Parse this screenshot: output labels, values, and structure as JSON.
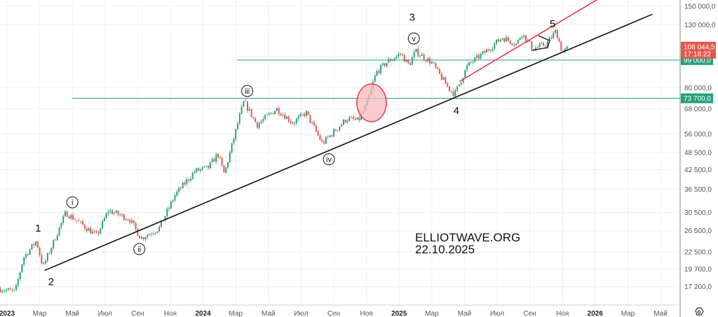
{
  "chart_data": {
    "type": "candlestick",
    "scale": "log",
    "title": "",
    "watermark": [
      "ELLIOTWAVE.ORG",
      "22.10.2025"
    ],
    "y_ticks": [
      "150 000,0",
      "130 000,0",
      "80 000,0",
      "68 000,0",
      "56 000,0",
      "48 500,0",
      "42 500,0",
      "36 500,0",
      "30 500,0",
      "26 500,0",
      "22 500,0",
      "19 700,0",
      "17 200,0"
    ],
    "y_tick_values": [
      150000,
      130000,
      80000,
      68000,
      56000,
      48500,
      42500,
      36500,
      30500,
      26500,
      22500,
      19700,
      17200
    ],
    "ylim": [
      15800,
      160000
    ],
    "x_ticks": [
      "2023",
      "Мар",
      "Май",
      "Июл",
      "Сен",
      "Ноя",
      "2024",
      "Мар",
      "Май",
      "Июл",
      "Сен",
      "Ноя",
      "2025",
      "Мар",
      "Май",
      "Июл",
      "Сен",
      "Ноя",
      "2026",
      "Мар",
      "Май"
    ],
    "x_tick_bold": [
      true,
      false,
      false,
      false,
      false,
      false,
      true,
      false,
      false,
      false,
      false,
      false,
      true,
      false,
      false,
      false,
      false,
      false,
      true,
      false,
      false
    ],
    "x_range_months_from_2023": [
      -0.4,
      40.2
    ],
    "price_path": [
      [
        -0.4,
        16900
      ],
      [
        0.5,
        16500
      ],
      [
        1.0,
        21500
      ],
      [
        1.8,
        24500
      ],
      [
        2.2,
        20000
      ],
      [
        3.6,
        30500
      ],
      [
        5.5,
        25500
      ],
      [
        6.2,
        31000
      ],
      [
        7.5,
        29000
      ],
      [
        8.2,
        25000
      ],
      [
        9.3,
        27000
      ],
      [
        10.3,
        35000
      ],
      [
        11.5,
        42000
      ],
      [
        12.3,
        43000
      ],
      [
        12.9,
        48000
      ],
      [
        13.3,
        41000
      ],
      [
        14.2,
        63000
      ],
      [
        14.5,
        72000
      ],
      [
        15.3,
        60000
      ],
      [
        16.5,
        68000
      ],
      [
        17.5,
        61000
      ],
      [
        18.3,
        66000
      ],
      [
        19.3,
        52000
      ],
      [
        20.8,
        63000
      ],
      [
        21.5,
        62000
      ],
      [
        22.0,
        70000
      ],
      [
        22.6,
        90000
      ],
      [
        23.3,
        98000
      ],
      [
        24.1,
        104000
      ],
      [
        24.6,
        95000
      ],
      [
        25.0,
        106000
      ],
      [
        26.0,
        97000
      ],
      [
        27.0,
        80000
      ],
      [
        27.4,
        76000
      ],
      [
        28.2,
        95000
      ],
      [
        29.5,
        108000
      ],
      [
        30.3,
        118000
      ],
      [
        31.2,
        112000
      ],
      [
        31.5,
        122000
      ],
      [
        32.2,
        108000
      ],
      [
        33.0,
        112000
      ],
      [
        33.6,
        124000
      ],
      [
        34.0,
        105000
      ],
      [
        34.3,
        108044.5
      ]
    ],
    "last_price": {
      "label": "108 044,5",
      "countdown": "17:18:22",
      "color": "#e2574c"
    },
    "levels": [
      {
        "value": 99000,
        "label": "99 000,0",
        "color": "#26a17b"
      },
      {
        "value": 73700,
        "label": "73 700,0",
        "color": "#26a17b"
      }
    ],
    "trendlines": [
      {
        "name": "support",
        "color": "#111111",
        "from": [
          2.3,
          19500
        ],
        "to": [
          39.5,
          141000
        ]
      },
      {
        "name": "channel",
        "color": "#f23645",
        "from": [
          27.7,
          84000
        ],
        "to": [
          36.3,
          160000
        ]
      }
    ],
    "wave_labels": [
      {
        "text": "1",
        "m": 1.9,
        "p": 27000
      },
      {
        "text": "2",
        "m": 2.7,
        "p": 17900
      },
      {
        "text": "3",
        "m": 24.8,
        "p": 138000
      },
      {
        "text": "4",
        "m": 27.5,
        "p": 67000
      },
      {
        "text": "5",
        "m": 33.4,
        "p": 131000
      }
    ],
    "circled_labels": [
      {
        "text": "i",
        "m": 4.0,
        "p": 33000
      },
      {
        "text": "ii",
        "m": 8.1,
        "p": 23000
      },
      {
        "text": "iii",
        "m": 14.7,
        "p": 78000
      },
      {
        "text": "iv",
        "m": 19.7,
        "p": 46000
      },
      {
        "text": "v",
        "m": 24.9,
        "p": 117000
      }
    ],
    "colors": {
      "up": "#26a17b",
      "down": "#e2574c",
      "grid": "#eef0f3",
      "highlight": "#f7b9bd"
    }
  }
}
